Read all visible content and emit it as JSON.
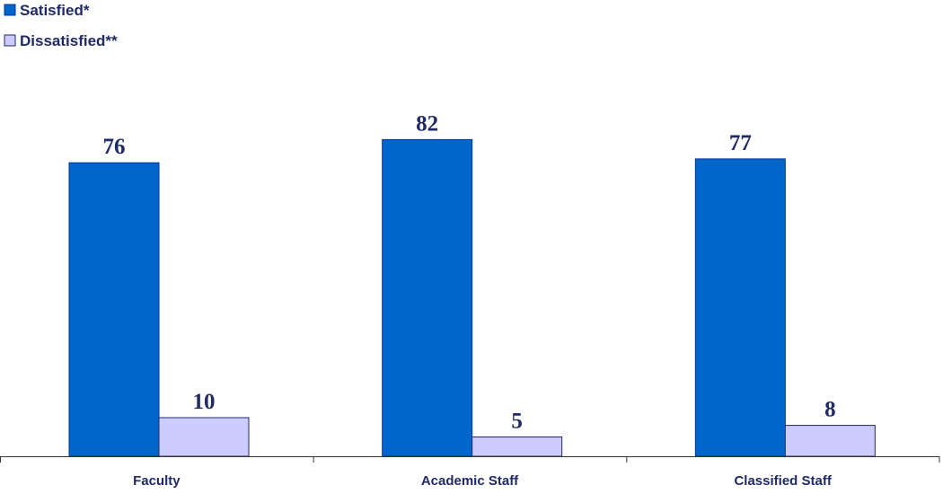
{
  "chart_data": {
    "type": "bar",
    "categories": [
      "Faculty",
      "Academic Staff",
      "Classified Staff"
    ],
    "series": [
      {
        "name": "Satisfied*",
        "values": [
          76,
          82,
          77
        ],
        "color": "#0066CC",
        "stroke": "#003399"
      },
      {
        "name": "Dissatisfied**",
        "values": [
          10,
          5,
          8
        ],
        "color": "#CCCCFF",
        "stroke": "#1F2A66"
      }
    ],
    "title": "",
    "xlabel": "",
    "ylabel": "",
    "ylim": [
      0,
      100
    ],
    "grid": false,
    "legend_position": "top-left",
    "label_color": "#1F2A66"
  }
}
